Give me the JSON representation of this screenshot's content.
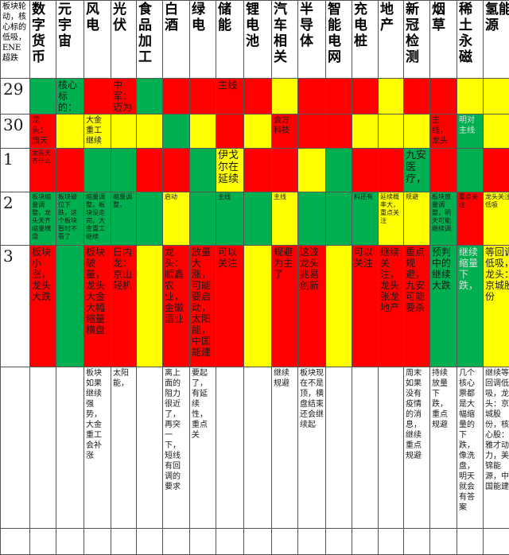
{
  "corner_note": "板块轮动，核心标的低吸，ENE超跌",
  "sectors": [
    "数字货币",
    "元宇宙",
    "风电",
    "光伏",
    "食品加工",
    "白酒",
    "绿电",
    "储能",
    "锂电池",
    "汽车相关",
    "半导体",
    "智能电网",
    "充电桩",
    "地产",
    "新冠检测",
    "烟草",
    "稀土永磁",
    "氢能源"
  ],
  "colors": {
    "red": "#ff0000",
    "yellow": "#ffff00",
    "green": "#00b050",
    "white": "#ffffff",
    "purple_text": "#7030a0"
  },
  "rows": [
    {
      "label": "29",
      "cells": [
        {
          "color": "green",
          "text": ""
        },
        {
          "color": "green",
          "text": "核心标的："
        },
        {
          "color": "red",
          "text": ""
        },
        {
          "color": "red",
          "text": "中军：迈为"
        },
        {
          "color": "green",
          "text": ""
        },
        {
          "color": "red",
          "text": ""
        },
        {
          "color": "red",
          "text": ""
        },
        {
          "color": "red",
          "text": "主线"
        },
        {
          "color": "red",
          "text": ""
        },
        {
          "color": "yellow",
          "text": ""
        },
        {
          "color": "red",
          "text": ""
        },
        {
          "color": "red",
          "text": ""
        },
        {
          "color": "red",
          "text": ""
        },
        {
          "color": "yellow",
          "text": ""
        },
        {
          "color": "red",
          "text": ""
        },
        {
          "color": "red",
          "text": ""
        },
        {
          "color": "yellow",
          "text": ""
        },
        {
          "color": "yellow",
          "text": ""
        }
      ]
    },
    {
      "label": "30",
      "cells": [
        {
          "color": "red",
          "text": "龙头：旗天"
        },
        {
          "color": "yellow",
          "text": ""
        },
        {
          "color": "yellow",
          "text": "大金重工继续"
        },
        {
          "color": "yellow",
          "text": ""
        },
        {
          "color": "yellow",
          "text": ""
        },
        {
          "color": "green",
          "text": ""
        },
        {
          "color": "yellow",
          "text": ""
        },
        {
          "color": "red",
          "text": ""
        },
        {
          "color": "yellow",
          "text": ""
        },
        {
          "color": "red",
          "text": "会方科技"
        },
        {
          "color": "red",
          "text": ""
        },
        {
          "color": "red",
          "text": ""
        },
        {
          "color": "yellow",
          "text": ""
        },
        {
          "color": "yellow",
          "text": ""
        },
        {
          "color": "yellow",
          "text": ""
        },
        {
          "color": "red",
          "text": "主线，龙头"
        },
        {
          "color": "green",
          "text": "明对主线"
        },
        {
          "color": "yellow",
          "text": ""
        }
      ]
    },
    {
      "label": "1",
      "cells": [
        {
          "color": "red",
          "text": "龙头天齐什么"
        },
        {
          "color": "red",
          "text": ""
        },
        {
          "color": "green",
          "text": ""
        },
        {
          "color": "green",
          "text": ""
        },
        {
          "color": "red",
          "text": ""
        },
        {
          "color": "red",
          "text": ""
        },
        {
          "color": "green",
          "text": ""
        },
        {
          "color": "yellow",
          "text": "伊戈尔在延续"
        },
        {
          "color": "red",
          "text": ""
        },
        {
          "color": "red",
          "text": ""
        },
        {
          "color": "yellow",
          "text": ""
        },
        {
          "color": "green",
          "text": ""
        },
        {
          "color": "red",
          "text": ""
        },
        {
          "color": "red",
          "text": ""
        },
        {
          "color": "green",
          "text": "九安医疗，"
        },
        {
          "color": "red",
          "text": ""
        },
        {
          "color": "green",
          "text": ""
        },
        {
          "color": "red",
          "text": ""
        }
      ]
    },
    {
      "label": "2",
      "cells": [
        {
          "color": "green",
          "text": "板块缩量调整，龙头天齐缩量横盘"
        },
        {
          "color": "green",
          "text": "板块破位下跌，这个板块暂时不看了"
        },
        {
          "color": "green",
          "text": "缩量调整，板块没走完，大金重工继续"
        },
        {
          "color": "green",
          "text": "缩量调整，"
        },
        {
          "color": "green",
          "text": ""
        },
        {
          "color": "yellow",
          "text": "启动"
        },
        {
          "color": "green",
          "text": ""
        },
        {
          "color": "green",
          "text": "主线"
        },
        {
          "color": "green",
          "text": ""
        },
        {
          "color": "yellow",
          "text": "主线"
        },
        {
          "color": "green",
          "text": ""
        },
        {
          "color": "green",
          "text": ""
        },
        {
          "color": "green",
          "text": "料还有"
        },
        {
          "color": "yellow",
          "text": "延续概率大，重点关注"
        },
        {
          "color": "yellow",
          "text": "规避"
        },
        {
          "color": "green",
          "text": "板块放量调整，明天可能继续调"
        },
        {
          "color": "red",
          "text": "重点关注"
        },
        {
          "color": "yellow",
          "text": "龙头关注低吸"
        }
      ]
    },
    {
      "label": "3",
      "cells": [
        {
          "color": "red",
          "text": "板块小涨，龙头大跌"
        },
        {
          "color": "green",
          "text": ""
        },
        {
          "color": "red",
          "text": "板块破量，龙头大金大幅缩量横盘"
        },
        {
          "color": "red",
          "text": "日内龙：京山轻机"
        },
        {
          "color": "yellow",
          "text": ""
        },
        {
          "color": "red",
          "text": "龙头：顺鑫农业，金徽酒业"
        },
        {
          "color": "red",
          "text": "放量大涨，可能要启动，太阳能，中国能建"
        },
        {
          "color": "red",
          "text": "可以关注"
        },
        {
          "color": "yellow",
          "text": ""
        },
        {
          "color": "red",
          "text": "规避为主了"
        },
        {
          "color": "red",
          "text": "这波龙头兆易创新"
        },
        {
          "color": "yellow",
          "text": ""
        },
        {
          "color": "red",
          "text": "可以关注"
        },
        {
          "color": "red",
          "text": "继续关注，龙头张龙地产"
        },
        {
          "color": "red",
          "text": "重点规避，九安可能要杀"
        },
        {
          "color": "green",
          "text": "预判中的继续大跌"
        },
        {
          "color": "green",
          "text": "继续缩量下跌，"
        },
        {
          "color": "yellow",
          "text": "等回调低吸，龙头：京城股份"
        }
      ]
    },
    {
      "label": "",
      "cells": [
        {
          "color": "white",
          "text": ""
        },
        {
          "color": "white",
          "text": ""
        },
        {
          "color": "white",
          "text": "板块如果继续强势，大金重工会补涨"
        },
        {
          "color": "white",
          "text": "太阳能，"
        },
        {
          "color": "white",
          "text": ""
        },
        {
          "color": "white",
          "text": "离上面的阻力很近了，再突一下，短线有回调的要求"
        },
        {
          "color": "white",
          "text": "要起了，有延续性，重点关"
        },
        {
          "color": "white",
          "text": ""
        },
        {
          "color": "white",
          "text": ""
        },
        {
          "color": "white",
          "text": "继续规避"
        },
        {
          "color": "white",
          "text": "板块现在不是顶，横盘结束还会继续起"
        },
        {
          "color": "white",
          "text": ""
        },
        {
          "color": "white",
          "text": ""
        },
        {
          "color": "white",
          "text": ""
        },
        {
          "color": "white",
          "text": "周末如果没有疫情的消息，继续重点规避"
        },
        {
          "color": "white",
          "text": "持续放量下跌，重点规避"
        },
        {
          "color": "white",
          "text": "几个核心票都是大幅缩量的下跌，像洗盘，明天就会有答案"
        },
        {
          "color": "white",
          "text": "继续等回调低吸，龙头：京城股份，核心股：雅才动力，美锦能源，中国能建"
        }
      ]
    },
    {
      "label": "",
      "cells": [
        {
          "color": "white",
          "text": ""
        },
        {
          "color": "white",
          "text": ""
        },
        {
          "color": "white",
          "text": ""
        },
        {
          "color": "white",
          "text": ""
        },
        {
          "color": "white",
          "text": ""
        },
        {
          "color": "white",
          "text": ""
        },
        {
          "color": "white",
          "text": ""
        },
        {
          "color": "white",
          "text": ""
        },
        {
          "color": "white",
          "text": ""
        },
        {
          "color": "white",
          "text": ""
        },
        {
          "color": "white",
          "text": ""
        },
        {
          "color": "white",
          "text": ""
        },
        {
          "color": "white",
          "text": ""
        },
        {
          "color": "white",
          "text": ""
        },
        {
          "color": "white",
          "text": ""
        },
        {
          "color": "white",
          "text": ""
        },
        {
          "color": "white",
          "text": ""
        },
        {
          "color": "white",
          "text": ""
        }
      ]
    }
  ]
}
